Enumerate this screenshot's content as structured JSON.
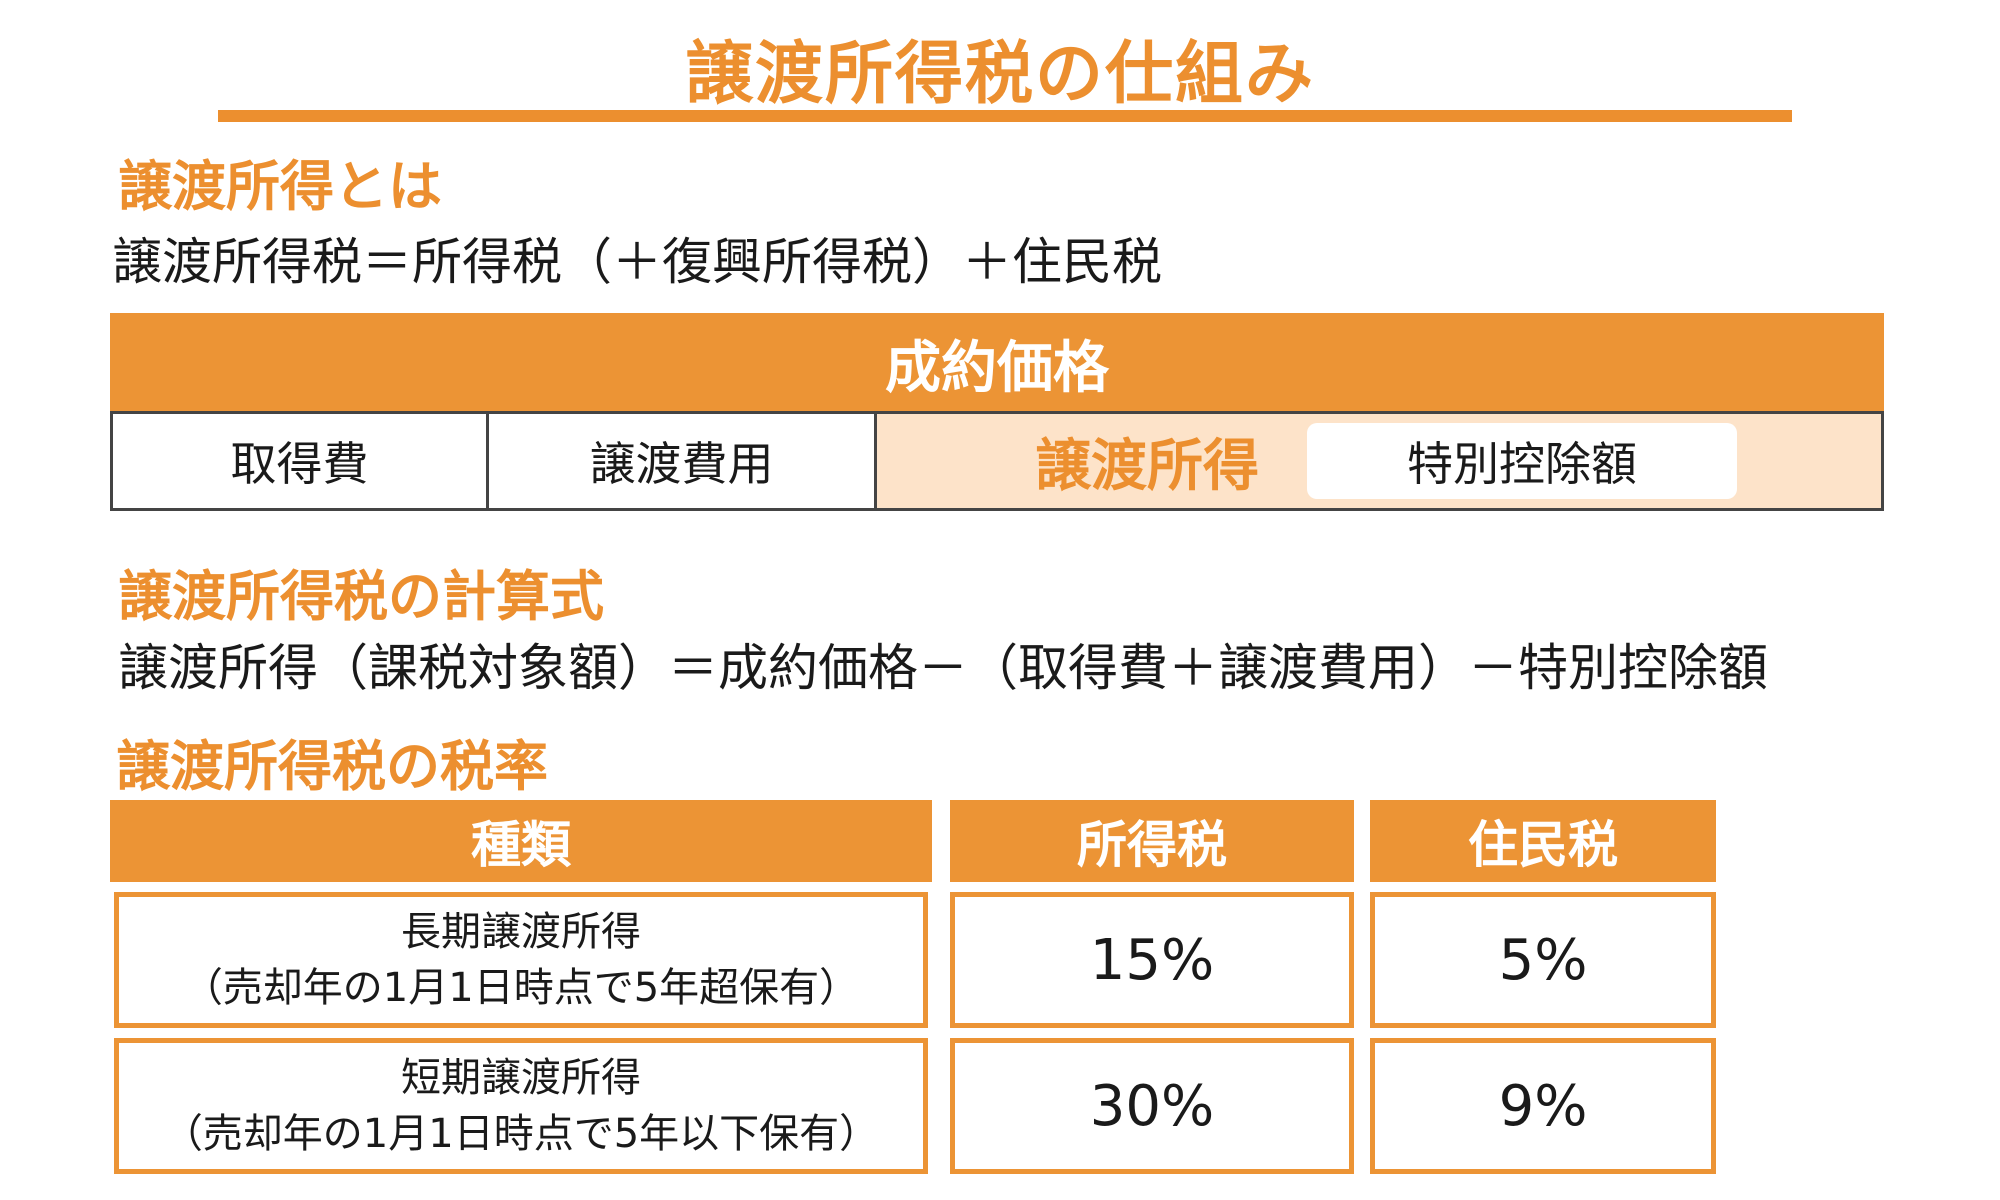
{
  "title": "譲渡所得税の仕組み",
  "sections": {
    "about": {
      "heading": "譲渡所得とは",
      "text": "譲渡所得税＝所得税（＋復興所得税）＋住民税"
    },
    "formula": {
      "heading": "譲渡所得税の計算式",
      "text": "譲渡所得（課税対象額）＝成約価格－（取得費＋譲渡費用）－特別控除額"
    },
    "rates": {
      "heading": "譲渡所得税の税率"
    }
  },
  "price_diagram": {
    "header": "成約価格",
    "cells": {
      "acquisition": "取得費",
      "transfer_expense": "譲渡費用",
      "transfer_income": "譲渡所得",
      "special_deduction": "特別控除額"
    }
  },
  "tax_table": {
    "headers": [
      "種類",
      "所得税",
      "住民税"
    ],
    "rows": [
      {
        "kind_line1": "長期譲渡所得",
        "kind_line2": "（売却年の1月1日時点で5年超保有）",
        "income_tax": "15%",
        "resident_tax": "5%"
      },
      {
        "kind_line1": "短期譲渡所得",
        "kind_line2": "（売却年の1月1日時点で5年以下保有）",
        "income_tax": "30%",
        "resident_tax": "9%"
      }
    ]
  },
  "colors": {
    "accent": "#ec8f2f",
    "accent_fill": "#ec9435",
    "highlight_fill": "#fde3c9",
    "text": "#1a1a1a",
    "border": "#444444"
  }
}
